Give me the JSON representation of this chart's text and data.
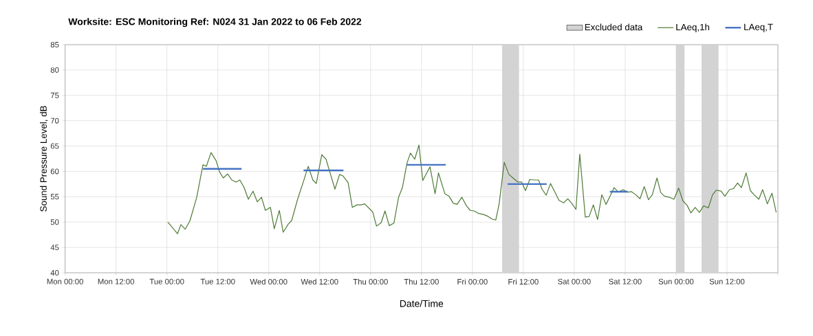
{
  "chart_data": {
    "type": "line",
    "title": "Worksite: ESC    Monitoring Ref: N024    31 Jan 2022 to 06 Feb 2022",
    "xlabel": "Date/Time",
    "ylabel": "Sound Pressure Level, dB",
    "xlim": [
      "2022-01-31T00:00",
      "2022-02-07T00:00"
    ],
    "ylim": [
      40,
      85
    ],
    "xticks": [
      {
        "value": "2022-01-31T00:00",
        "label": "Mon 00:00"
      },
      {
        "value": "2022-01-31T12:00",
        "label": "Mon 12:00"
      },
      {
        "value": "2022-02-01T00:00",
        "label": "Tue 00:00"
      },
      {
        "value": "2022-02-01T12:00",
        "label": "Tue 12:00"
      },
      {
        "value": "2022-02-02T00:00",
        "label": "Wed 00:00"
      },
      {
        "value": "2022-02-02T12:00",
        "label": "Wed 12:00"
      },
      {
        "value": "2022-02-03T00:00",
        "label": "Thu 00:00"
      },
      {
        "value": "2022-02-03T12:00",
        "label": "Thu 12:00"
      },
      {
        "value": "2022-02-04T00:00",
        "label": "Fri 00:00"
      },
      {
        "value": "2022-02-04T12:00",
        "label": "Fri 12:00"
      },
      {
        "value": "2022-02-05T00:00",
        "label": "Sat 00:00"
      },
      {
        "value": "2022-02-05T12:00",
        "label": "Sat 12:00"
      },
      {
        "value": "2022-02-06T00:00",
        "label": "Sun 00:00"
      },
      {
        "value": "2022-02-06T12:00",
        "label": "Sun 12:00"
      },
      {
        "value": "2022-02-07T00:00",
        "label": null
      }
    ],
    "yticks": [
      40,
      45,
      50,
      55,
      60,
      65,
      70,
      75,
      80,
      85
    ],
    "grid": true,
    "legend": "top right",
    "bands": [
      {
        "axis": "x",
        "from": "2022-02-04T07:00",
        "to": "2022-02-04T11:00",
        "label": "Excluded data",
        "color": "#d3d3d3"
      },
      {
        "axis": "x",
        "from": "2022-02-06T00:00",
        "to": "2022-02-06T02:00",
        "color": "#d3d3d3"
      },
      {
        "axis": "x",
        "from": "2022-02-06T06:00",
        "to": "2022-02-06T10:00",
        "color": "#d3d3d3"
      }
    ],
    "series": [
      {
        "name": "LAeq,1h",
        "color": "#4e7a36",
        "x": [
          "2022-02-01T00:12",
          "2022-02-01T02:30",
          "2022-02-01T03:18",
          "2022-02-01T04:18",
          "2022-02-01T05:24",
          "2022-02-01T07:00",
          "2022-02-01T08:30",
          "2022-02-01T09:18",
          "2022-02-01T10:24",
          "2022-02-01T11:36",
          "2022-02-01T12:24",
          "2022-02-01T13:18",
          "2022-02-01T14:18",
          "2022-02-01T15:18",
          "2022-02-01T16:18",
          "2022-02-01T17:12",
          "2022-02-01T18:12",
          "2022-02-01T19:12",
          "2022-02-01T20:18",
          "2022-02-01T21:18",
          "2022-02-01T22:18",
          "2022-02-01T23:12",
          "2022-02-02T00:24",
          "2022-02-02T01:18",
          "2022-02-02T02:30",
          "2022-02-02T03:24",
          "2022-02-02T04:36",
          "2022-02-02T05:24",
          "2022-02-02T06:48",
          "2022-02-02T08:06",
          "2022-02-02T09:18",
          "2022-02-02T10:24",
          "2022-02-02T11:12",
          "2022-02-02T12:30",
          "2022-02-02T13:30",
          "2022-02-02T14:36",
          "2022-02-02T15:36",
          "2022-02-02T16:42",
          "2022-02-02T17:30",
          "2022-02-02T18:42",
          "2022-02-02T19:42",
          "2022-02-02T20:48",
          "2022-02-02T21:48",
          "2022-02-02T22:36",
          "2022-02-03T00:30",
          "2022-02-03T01:24",
          "2022-02-03T02:30",
          "2022-02-03T03:24",
          "2022-02-03T04:24",
          "2022-02-03T05:30",
          "2022-02-03T06:36",
          "2022-02-03T07:30",
          "2022-02-03T08:36",
          "2022-02-03T09:24",
          "2022-02-03T10:24",
          "2022-02-03T11:24",
          "2022-02-03T12:18",
          "2022-02-03T14:00",
          "2022-02-03T15:12",
          "2022-02-03T16:00",
          "2022-02-03T17:30",
          "2022-02-03T18:30",
          "2022-02-03T19:30",
          "2022-02-03T20:24",
          "2022-02-03T21:30",
          "2022-02-03T22:36",
          "2022-02-03T23:30",
          "2022-02-04T00:24",
          "2022-02-04T01:30",
          "2022-02-04T02:36",
          "2022-02-04T03:30",
          "2022-02-04T04:36",
          "2022-02-04T05:30",
          "2022-02-04T06:18",
          "2022-02-04T07:30",
          "2022-02-04T08:36",
          "2022-02-04T09:42",
          "2022-02-04T10:42",
          "2022-02-04T11:36",
          "2022-02-04T12:30",
          "2022-02-04T13:30",
          "2022-02-04T14:36",
          "2022-02-04T15:36",
          "2022-02-04T16:24",
          "2022-02-04T17:24",
          "2022-02-04T18:24",
          "2022-02-04T19:24",
          "2022-02-04T20:24",
          "2022-02-04T21:30",
          "2022-02-04T22:30",
          "2022-02-04T23:30",
          "2022-02-05T00:24",
          "2022-02-05T01:18",
          "2022-02-05T02:36",
          "2022-02-05T03:30",
          "2022-02-05T04:30",
          "2022-02-05T05:30",
          "2022-02-05T06:30",
          "2022-02-05T07:30",
          "2022-02-05T08:30",
          "2022-02-05T09:24",
          "2022-02-05T10:24",
          "2022-02-05T11:30",
          "2022-02-05T12:36",
          "2022-02-05T13:30",
          "2022-02-05T14:30",
          "2022-02-05T15:30",
          "2022-02-05T16:30",
          "2022-02-05T17:30",
          "2022-02-05T18:24",
          "2022-02-05T19:30",
          "2022-02-05T20:24",
          "2022-02-05T21:18",
          "2022-02-05T22:24",
          "2022-02-05T23:30",
          "2022-02-06T00:36",
          "2022-02-06T01:36",
          "2022-02-06T02:36",
          "2022-02-06T03:30",
          "2022-02-06T04:30",
          "2022-02-06T05:30",
          "2022-02-06T06:30",
          "2022-02-06T07:36",
          "2022-02-06T08:36",
          "2022-02-06T09:30",
          "2022-02-06T10:36",
          "2022-02-06T11:30",
          "2022-02-06T12:36",
          "2022-02-06T13:30",
          "2022-02-06T14:30",
          "2022-02-06T15:24",
          "2022-02-06T16:30",
          "2022-02-06T17:30",
          "2022-02-06T18:30",
          "2022-02-06T19:30",
          "2022-02-06T20:24",
          "2022-02-06T21:30",
          "2022-02-06T22:36",
          "2022-02-06T23:36"
        ],
        "values": [
          50.0,
          47.7,
          49.5,
          48.6,
          50.2,
          54.8,
          61.3,
          61.0,
          63.7,
          62.1,
          59.9,
          58.7,
          59.5,
          58.3,
          57.9,
          58.3,
          56.8,
          54.5,
          56.1,
          54.0,
          54.9,
          52.3,
          52.9,
          48.7,
          52.3,
          48.0,
          49.6,
          50.3,
          54.5,
          57.8,
          61.0,
          58.3,
          57.6,
          63.3,
          62.4,
          59.3,
          56.5,
          59.4,
          59.1,
          57.8,
          52.9,
          53.4,
          53.4,
          53.6,
          52.0,
          49.2,
          49.9,
          52.2,
          49.3,
          49.8,
          54.9,
          56.8,
          61.7,
          63.6,
          62.4,
          65.2,
          58.2,
          60.9,
          55.6,
          59.7,
          55.6,
          55.1,
          53.7,
          53.5,
          54.9,
          53.2,
          52.3,
          52.2,
          51.7,
          51.5,
          51.2,
          50.6,
          50.4,
          53.6,
          61.8,
          59.4,
          58.6,
          57.9,
          57.9,
          56.2,
          58.4,
          58.3,
          58.3,
          56.5,
          55.3,
          57.6,
          56.0,
          54.3,
          53.8,
          54.6,
          53.6,
          52.5,
          63.4,
          51.0,
          51.1,
          53.4,
          50.5,
          55.4,
          53.5,
          55.2,
          56.8,
          55.9,
          56.4,
          55.9,
          56.0,
          55.4,
          54.6,
          57.0,
          54.4,
          55.4,
          58.7,
          55.8,
          55.1,
          54.9,
          54.5,
          56.7,
          54.2,
          53.3,
          51.8,
          52.9,
          51.9,
          53.2,
          52.8,
          55.4,
          56.3,
          56.1,
          55.1,
          56.4,
          56.6,
          57.7,
          56.8,
          59.7,
          56.2,
          55.3,
          54.5,
          56.4,
          53.6,
          55.7,
          51.9
        ]
      },
      {
        "name": "LAeq,T",
        "color": "#4472c4",
        "x": [
          "2022-02-01T08:30",
          "2022-02-01T17:36",
          "2022-02-02T01:00",
          "2022-02-02T08:12",
          "2022-02-02T17:36",
          "2022-02-03T01:00",
          "2022-02-03T08:30",
          "2022-02-03T17:42",
          "2022-02-04T01:00",
          "2022-02-04T08:18",
          "2022-02-04T17:30",
          "2022-02-05T01:00",
          "2022-02-05T08:24",
          "2022-02-05T12:36"
        ],
        "values": [
          60.5,
          60.5,
          null,
          60.2,
          60.2,
          null,
          61.3,
          61.3,
          null,
          57.5,
          57.5,
          null,
          56.0,
          56.0
        ]
      }
    ]
  }
}
